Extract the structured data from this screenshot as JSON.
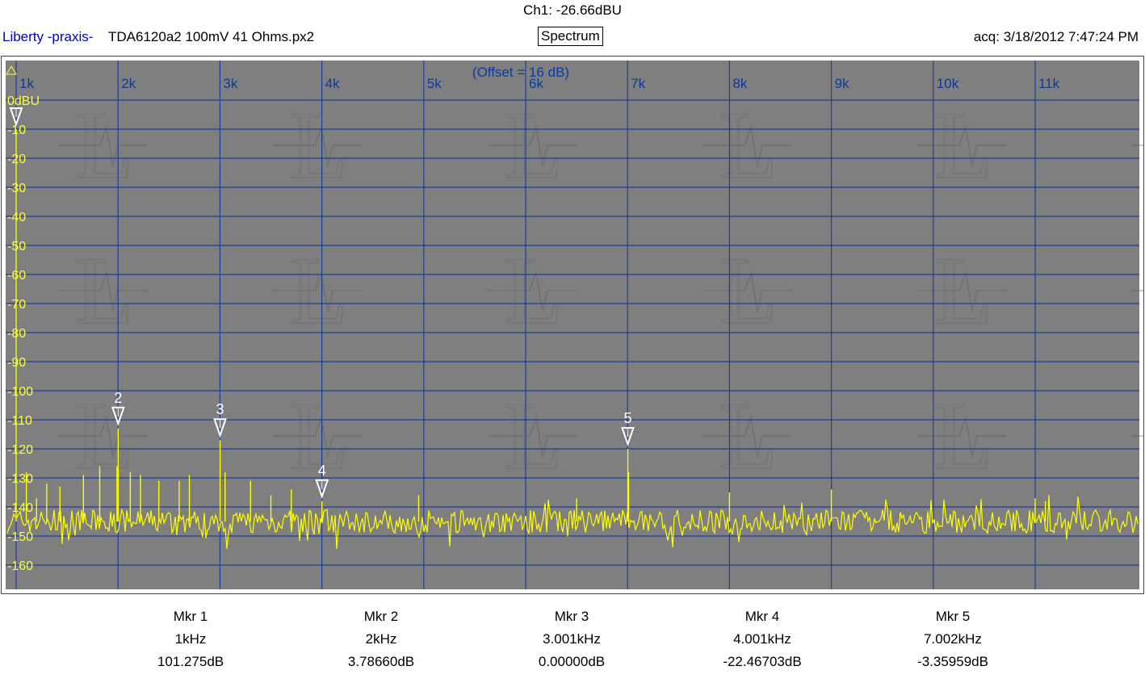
{
  "header": {
    "channel_reading": "Ch1: -26.66dBU",
    "brand": "Liberty -praxis-",
    "filename": "TDA6120a2 100mV 41 Ohms.px2",
    "view_title": "Spectrum",
    "acquired": "acq: 3/18/2012 7:47:24 PM"
  },
  "colors": {
    "plot_background": "#7f7f7f",
    "grid": "#1c3f9a",
    "trace": "#ffff00",
    "axis_label": "#0a3a9c",
    "y_label": "#ffff33",
    "marker": "#ffffff"
  },
  "chart_data": {
    "type": "line",
    "offset_note": "(Offset = 16 dB)",
    "x_unit": "Hz",
    "xlim": [
      900,
      11100
    ],
    "x_ticks": [
      1000,
      2000,
      3000,
      4000,
      5000,
      6000,
      7000,
      8000,
      9000,
      10000,
      11000
    ],
    "x_tick_labels": [
      "1k",
      "2k",
      "3k",
      "4k",
      "5k",
      "6k",
      "7k",
      "8k",
      "9k",
      "10k",
      "11k"
    ],
    "ylim": [
      -165,
      0
    ],
    "y_ticks": [
      0,
      -10,
      -20,
      -30,
      -40,
      -50,
      -60,
      -70,
      -80,
      -90,
      -100,
      -110,
      -120,
      -130,
      -140,
      -150,
      -160
    ],
    "y_tick_labels": [
      "0dBU",
      "-10",
      "-20",
      "-30",
      "-40",
      "-50",
      "-60",
      "-70",
      "-80",
      "-90",
      "-100",
      "-110",
      "-120",
      "-130",
      "-140",
      "-150",
      "-160"
    ],
    "grid": true,
    "noise_floor_dbu": -145,
    "spectrum_peaks": [
      {
        "f": 1000,
        "level": -10
      },
      {
        "f": 1100,
        "level": -128
      },
      {
        "f": 1200,
        "level": -137
      },
      {
        "f": 1300,
        "level": -132
      },
      {
        "f": 1430,
        "level": -133
      },
      {
        "f": 1660,
        "level": -129
      },
      {
        "f": 1820,
        "level": -126
      },
      {
        "f": 1990,
        "level": -126
      },
      {
        "f": 2001,
        "level": -113
      },
      {
        "f": 2120,
        "level": -128
      },
      {
        "f": 2220,
        "level": -129
      },
      {
        "f": 2400,
        "level": -131
      },
      {
        "f": 2600,
        "level": -131
      },
      {
        "f": 2700,
        "level": -129
      },
      {
        "f": 3001,
        "level": -117
      },
      {
        "f": 3050,
        "level": -128
      },
      {
        "f": 3300,
        "level": -131
      },
      {
        "f": 3500,
        "level": -136
      },
      {
        "f": 3700,
        "level": -134
      },
      {
        "f": 4001,
        "level": -138
      },
      {
        "f": 4950,
        "level": -136
      },
      {
        "f": 6500,
        "level": -137
      },
      {
        "f": 7002,
        "level": -120
      },
      {
        "f": 7010,
        "level": -128
      },
      {
        "f": 8000,
        "level": -135
      },
      {
        "f": 9000,
        "level": -134
      },
      {
        "f": 11000,
        "level": -137
      },
      {
        "f": 11100,
        "level": -138
      }
    ],
    "markers": [
      {
        "id": "1",
        "f": 1000,
        "level": -10
      },
      {
        "id": "2",
        "f": 2001,
        "level": -113
      },
      {
        "id": "3",
        "f": 3001,
        "level": -117
      },
      {
        "id": "4",
        "f": 4001,
        "level": -138
      },
      {
        "id": "5",
        "f": 7002,
        "level": -120
      }
    ]
  },
  "marker_readouts": [
    {
      "name": "Mkr 1",
      "freq": "1kHz",
      "value": "101.275dB"
    },
    {
      "name": "Mkr 2",
      "freq": "2kHz",
      "value": "3.78660dB"
    },
    {
      "name": "Mkr 3",
      "freq": "3.001kHz",
      "value": "0.00000dB"
    },
    {
      "name": "Mkr 4",
      "freq": "4.001kHz",
      "value": "-22.46703dB"
    },
    {
      "name": "Mkr 5",
      "freq": "7.002kHz",
      "value": "-3.35959dB"
    }
  ]
}
